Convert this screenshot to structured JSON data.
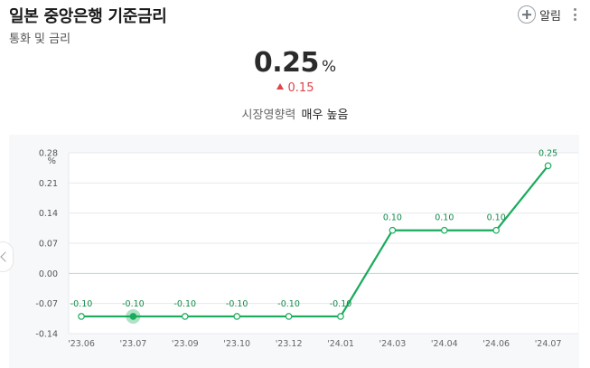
{
  "header": {
    "title": "일본 중앙은행 기준금리",
    "subtitle": "통화 및 금리",
    "alarm_label": "알림"
  },
  "rate": {
    "value": "0.25",
    "unit": "%",
    "change": "0.15",
    "change_direction": "up",
    "impact_label": "시장영향력",
    "impact_level": "매우 높음"
  },
  "colors": {
    "line": "#1aab5c",
    "up": "#e0434a",
    "zero_line": "#b7d4ea",
    "grid": "#e6e9ee",
    "chart_bg": "#f6f8fa"
  },
  "chart_data": {
    "type": "line",
    "unit_label": "%",
    "categories": [
      "'23.06",
      "'23.07",
      "'23.09",
      "'23.10",
      "'23.12",
      "'24.01",
      "'24.03",
      "'24.04",
      "'24.06",
      "'24.07"
    ],
    "values": [
      -0.1,
      -0.1,
      -0.1,
      -0.1,
      -0.1,
      -0.1,
      0.1,
      0.1,
      0.1,
      0.25
    ],
    "data_labels": [
      "-0.10",
      "-0.10",
      "-0.10",
      "-0.10",
      "-0.10",
      "-0.10",
      "0.10",
      "0.10",
      "0.10",
      "0.25"
    ],
    "y_ticks": [
      "0.28",
      "0.21",
      "0.14",
      "0.07",
      "0.00",
      "-0.07",
      "-0.14"
    ],
    "ylim": [
      -0.14,
      0.28
    ],
    "highlight_index": 1,
    "grid": true
  }
}
